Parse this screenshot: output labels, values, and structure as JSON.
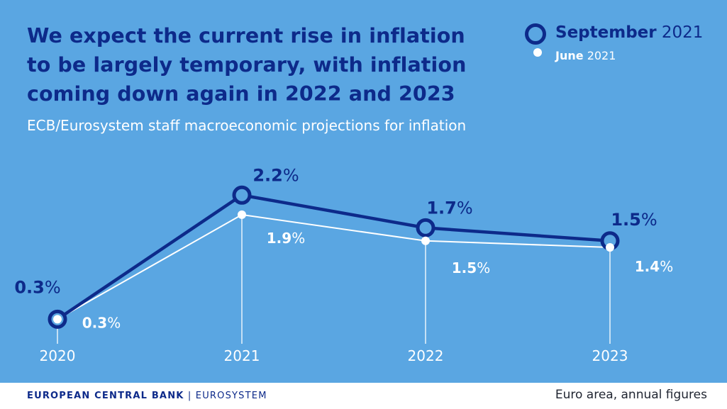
{
  "header": {
    "title_lines": [
      "We expect the current rise in inflation",
      "to be largely temporary, with inflation",
      "coming down again in 2022 and 2023"
    ],
    "subtitle": "ECB/Eurosystem staff macroeconomic projections for inflation"
  },
  "legend": {
    "september": {
      "month": "September",
      "year": "2021"
    },
    "june": {
      "month": "June",
      "year": "2021"
    }
  },
  "footer": {
    "brand_main": "EUROPEAN CENTRAL BANK",
    "brand_sep": " | ",
    "brand_sub": "EUROSYSTEM",
    "note": "Euro area, annual figures"
  },
  "colors": {
    "background": "#5aa6e2",
    "september": "#0d2a8a",
    "june": "#ffffff"
  },
  "chart_data": {
    "type": "line",
    "title": "We expect the current rise in inflation to be largely temporary, with inflation coming down again in 2022 and 2023",
    "subtitle": "ECB/Eurosystem staff macroeconomic projections for inflation",
    "categories": [
      "2020",
      "2021",
      "2022",
      "2023"
    ],
    "series": [
      {
        "name": "September 2021",
        "values": [
          0.3,
          2.2,
          1.7,
          1.5
        ],
        "labels": [
          "0.3%",
          "2.2%",
          "1.7%",
          "1.5%"
        ]
      },
      {
        "name": "June 2021",
        "values": [
          0.3,
          1.9,
          1.5,
          1.4
        ],
        "labels": [
          "0.3%",
          "1.9%",
          "1.5%",
          "1.4%"
        ]
      }
    ],
    "xlabel": "",
    "ylabel": "",
    "ylim": [
      0,
      2.8
    ],
    "grid": false,
    "legend_position": "top-right"
  }
}
